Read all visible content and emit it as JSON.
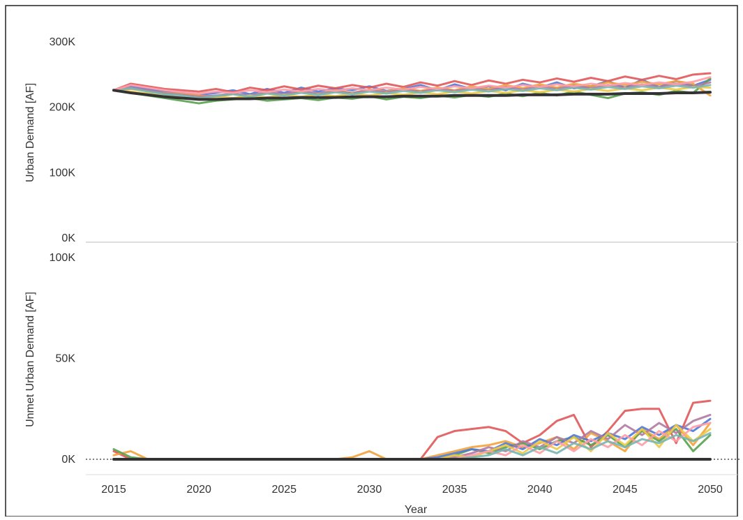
{
  "chart_data": [
    {
      "type": "line",
      "title": "",
      "xlabel": "",
      "ylabel": "Urban Demand [AF]",
      "xlim": [
        2013,
        2051
      ],
      "ylim": [
        0,
        320000
      ],
      "ytick_labels": [
        "0K",
        "100K",
        "200K",
        "300K"
      ],
      "ytick_values": [
        0,
        100000,
        200000,
        300000
      ],
      "grid": false,
      "legend": "none",
      "notes": "Many ensemble traces (~200-245K) plus a black baseline line.",
      "x": [
        2015,
        2016,
        2017,
        2018,
        2019,
        2020,
        2021,
        2022,
        2023,
        2024,
        2025,
        2026,
        2027,
        2028,
        2029,
        2030,
        2031,
        2032,
        2033,
        2034,
        2035,
        2036,
        2037,
        2038,
        2039,
        2040,
        2041,
        2042,
        2043,
        2044,
        2045,
        2046,
        2047,
        2048,
        2049,
        2050
      ],
      "series": [
        {
          "color": "#333333",
          "values": [
            226000,
            222000,
            219000,
            216000,
            214000,
            212000,
            212000,
            213000,
            213000,
            214000,
            214000,
            215000,
            215000,
            215000,
            216000,
            216000,
            216000,
            217000,
            217000,
            217000,
            218000,
            218000,
            218000,
            218000,
            219000,
            219000,
            219000,
            220000,
            220000,
            220000,
            221000,
            221000,
            221000,
            222000,
            222000,
            223000
          ]
        },
        {
          "color": "#4e79d6",
          "values": [
            226000,
            232000,
            228000,
            224000,
            222000,
            219000,
            222000,
            226000,
            220000,
            228000,
            222000,
            230000,
            224000,
            229000,
            226000,
            232000,
            225000,
            228000,
            234000,
            226000,
            235000,
            228000,
            232000,
            226000,
            236000,
            230000,
            238000,
            229000,
            232000,
            240000,
            230000,
            242000,
            231000,
            240000,
            233000,
            242000
          ]
        },
        {
          "color": "#e15759",
          "values": [
            226000,
            236000,
            232000,
            228000,
            226000,
            224000,
            228000,
            223000,
            230000,
            226000,
            232000,
            227000,
            233000,
            229000,
            234000,
            230000,
            236000,
            231000,
            238000,
            233000,
            240000,
            234000,
            241000,
            236000,
            242000,
            238000,
            244000,
            239000,
            245000,
            240000,
            247000,
            242000,
            248000,
            243000,
            250000,
            252000
          ]
        },
        {
          "color": "#59a14f",
          "values": [
            226000,
            222000,
            218000,
            214000,
            210000,
            206000,
            210000,
            212000,
            214000,
            210000,
            212000,
            214000,
            211000,
            215000,
            213000,
            217000,
            212000,
            216000,
            214000,
            218000,
            215000,
            219000,
            216000,
            221000,
            217000,
            222000,
            218000,
            224000,
            219000,
            214000,
            221000,
            223000,
            219000,
            225000,
            222000,
            244000
          ]
        },
        {
          "color": "#f2a33a",
          "values": [
            226000,
            228000,
            225000,
            222000,
            220000,
            218000,
            216000,
            220000,
            217000,
            222000,
            219000,
            224000,
            220000,
            226000,
            222000,
            227000,
            224000,
            229000,
            225000,
            230000,
            226000,
            232000,
            228000,
            234000,
            229000,
            235000,
            230000,
            236000,
            232000,
            238000,
            234000,
            239000,
            235000,
            240000,
            236000,
            218000
          ]
        },
        {
          "color": "#b07aa1",
          "values": [
            226000,
            230000,
            226000,
            221000,
            219000,
            216000,
            218000,
            221000,
            218000,
            223000,
            220000,
            225000,
            221000,
            224000,
            222000,
            226000,
            223000,
            227000,
            224000,
            228000,
            225000,
            229000,
            226000,
            231000,
            227000,
            232000,
            228000,
            233000,
            229000,
            234000,
            230000,
            235000,
            231000,
            236000,
            232000,
            238000
          ]
        },
        {
          "color": "#edc948",
          "values": [
            226000,
            224000,
            221000,
            218000,
            215000,
            213000,
            216000,
            214000,
            218000,
            215000,
            219000,
            216000,
            220000,
            217000,
            221000,
            218000,
            222000,
            219000,
            223000,
            220000,
            224000,
            221000,
            225000,
            222000,
            226000,
            223000,
            227000,
            224000,
            228000,
            225000,
            229000,
            226000,
            230000,
            227000,
            231000,
            230000
          ]
        },
        {
          "color": "#76b7b2",
          "values": [
            226000,
            229000,
            224000,
            220000,
            218000,
            214000,
            217000,
            220000,
            216000,
            221000,
            218000,
            222000,
            219000,
            223000,
            220000,
            224000,
            221000,
            225000,
            222000,
            226000,
            223000,
            227000,
            224000,
            228000,
            225000,
            229000,
            226000,
            230000,
            227000,
            231000,
            228000,
            232000,
            229000,
            233000,
            230000,
            234000
          ]
        },
        {
          "color": "#ff9da7",
          "values": [
            226000,
            234000,
            230000,
            226000,
            223000,
            221000,
            224000,
            222000,
            226000,
            223000,
            227000,
            224000,
            228000,
            225000,
            229000,
            226000,
            230000,
            227000,
            231000,
            228000,
            232000,
            229000,
            233000,
            230000,
            234000,
            231000,
            235000,
            232000,
            236000,
            233000,
            237000,
            234000,
            238000,
            235000,
            239000,
            246000
          ]
        }
      ]
    },
    {
      "type": "line",
      "title": "",
      "xlabel": "Year",
      "ylabel": "Unmet Urban Demand [AF]",
      "xlim": [
        2013,
        2051
      ],
      "ylim": [
        -6000,
        104000
      ],
      "ytick_labels": [
        "0K",
        "50K",
        "100K"
      ],
      "ytick_values": [
        0,
        50000,
        100000
      ],
      "xtick_labels": [
        "2015",
        "2020",
        "2025",
        "2030",
        "2035",
        "2040",
        "2045",
        "2050"
      ],
      "xtick_values": [
        2015,
        2020,
        2025,
        2030,
        2035,
        2040,
        2045,
        2050
      ],
      "grid": false,
      "legend": "none",
      "zero_reference_line": "dotted",
      "x": [
        2015,
        2016,
        2017,
        2018,
        2019,
        2020,
        2021,
        2022,
        2023,
        2024,
        2025,
        2026,
        2027,
        2028,
        2029,
        2030,
        2031,
        2032,
        2033,
        2034,
        2035,
        2036,
        2037,
        2038,
        2039,
        2040,
        2041,
        2042,
        2043,
        2044,
        2045,
        2046,
        2047,
        2048,
        2049,
        2050
      ],
      "series": [
        {
          "color": "#333333",
          "values": [
            0,
            0,
            0,
            0,
            0,
            0,
            0,
            0,
            0,
            0,
            0,
            0,
            0,
            0,
            0,
            0,
            0,
            0,
            0,
            0,
            0,
            0,
            0,
            0,
            0,
            0,
            0,
            0,
            0,
            0,
            0,
            0,
            0,
            0,
            0,
            0
          ]
        },
        {
          "color": "#e15759",
          "values": [
            4000,
            0,
            0,
            0,
            0,
            0,
            0,
            0,
            0,
            0,
            0,
            0,
            0,
            0,
            0,
            0,
            0,
            0,
            0,
            11000,
            14000,
            15000,
            16000,
            14000,
            8000,
            12000,
            19000,
            22000,
            6000,
            14000,
            24000,
            25000,
            25000,
            8000,
            28000,
            29000
          ]
        },
        {
          "color": "#f2a33a",
          "values": [
            2000,
            4000,
            0,
            0,
            0,
            0,
            0,
            0,
            0,
            0,
            0,
            0,
            0,
            0,
            1000,
            4000,
            0,
            0,
            0,
            2000,
            4000,
            6000,
            7000,
            9000,
            6000,
            8000,
            11000,
            5000,
            13000,
            9000,
            4000,
            15000,
            10000,
            17000,
            7000,
            18000
          ]
        },
        {
          "color": "#59a14f",
          "values": [
            5000,
            1000,
            0,
            0,
            0,
            0,
            0,
            0,
            0,
            0,
            0,
            0,
            0,
            0,
            0,
            0,
            0,
            0,
            0,
            0,
            2000,
            5000,
            3000,
            6000,
            8000,
            5000,
            9000,
            11000,
            7000,
            12000,
            6000,
            14000,
            9000,
            15000,
            4000,
            12000
          ]
        },
        {
          "color": "#4e79d6",
          "values": [
            0,
            0,
            0,
            0,
            0,
            0,
            0,
            0,
            0,
            0,
            0,
            0,
            0,
            0,
            0,
            0,
            0,
            0,
            0,
            1000,
            3000,
            5000,
            4000,
            8000,
            5000,
            10000,
            7000,
            12000,
            9000,
            13000,
            10000,
            16000,
            12000,
            17000,
            14000,
            20000
          ]
        },
        {
          "color": "#b07aa1",
          "values": [
            0,
            0,
            0,
            0,
            0,
            0,
            0,
            0,
            0,
            0,
            0,
            0,
            0,
            0,
            0,
            0,
            0,
            0,
            0,
            0,
            1000,
            3000,
            6000,
            4000,
            9000,
            6000,
            11000,
            8000,
            14000,
            10000,
            17000,
            12000,
            18000,
            13000,
            19000,
            22000
          ]
        },
        {
          "color": "#edc948",
          "values": [
            0,
            0,
            0,
            0,
            0,
            0,
            0,
            0,
            0,
            0,
            0,
            0,
            0,
            0,
            0,
            0,
            0,
            0,
            0,
            0,
            2000,
            1000,
            4000,
            7000,
            3000,
            9000,
            5000,
            11000,
            4000,
            13000,
            7000,
            15000,
            6000,
            17000,
            9000,
            15000
          ]
        },
        {
          "color": "#ff9da7",
          "values": [
            0,
            0,
            0,
            0,
            0,
            0,
            0,
            0,
            0,
            0,
            0,
            0,
            0,
            0,
            0,
            0,
            0,
            0,
            0,
            0,
            0,
            2000,
            4000,
            2000,
            7000,
            3000,
            9000,
            4000,
            10000,
            6000,
            12000,
            7000,
            14000,
            9000,
            16000,
            18000
          ]
        },
        {
          "color": "#76b7b2",
          "values": [
            0,
            0,
            0,
            0,
            0,
            0,
            0,
            0,
            0,
            0,
            0,
            0,
            0,
            0,
            0,
            0,
            0,
            0,
            0,
            0,
            0,
            1000,
            2000,
            5000,
            2000,
            6000,
            3000,
            8000,
            5000,
            9000,
            6000,
            10000,
            8000,
            12000,
            9000,
            13000
          ]
        }
      ]
    }
  ]
}
